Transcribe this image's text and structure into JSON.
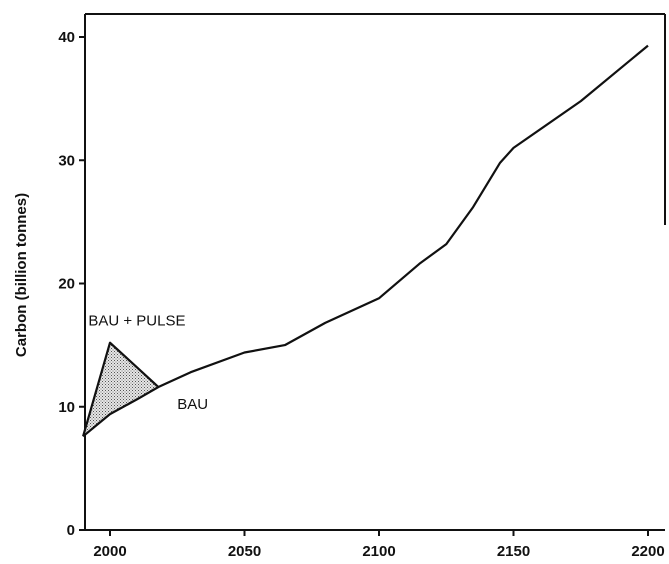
{
  "chart_data": {
    "type": "line",
    "title": "",
    "xlabel": "",
    "ylabel": "Carbon (billion tonnes)",
    "xlim": [
      1990,
      2205
    ],
    "ylim": [
      0,
      42
    ],
    "xticks": [
      2000,
      2050,
      2100,
      2150,
      2200
    ],
    "yticks": [
      0,
      10,
      20,
      30,
      40
    ],
    "grid": false,
    "series": [
      {
        "name": "BAU",
        "x": [
          1990,
          2000,
          2010,
          2018,
          2030,
          2050,
          2065,
          2080,
          2100,
          2115,
          2125,
          2135,
          2145,
          2150,
          2175,
          2200
        ],
        "y": [
          7.6,
          9.4,
          10.6,
          11.6,
          12.8,
          14.4,
          15.0,
          16.8,
          18.8,
          21.6,
          23.2,
          26.2,
          29.8,
          31.0,
          34.8,
          39.3
        ],
        "color": "#111111"
      },
      {
        "name": "BAU + PULSE",
        "x": [
          1990,
          2000,
          2018
        ],
        "y": [
          7.6,
          15.2,
          11.6
        ],
        "color": "#111111"
      }
    ],
    "shaded_region": {
      "between": [
        "BAU + PULSE",
        "BAU"
      ],
      "x_range": [
        1990,
        2018
      ],
      "fill": "stippled"
    },
    "annotations": [
      {
        "text": "BAU + PULSE",
        "x": 2010,
        "y": 16.6
      },
      {
        "text": "BAU",
        "x": 2025,
        "y": 9.8
      }
    ]
  }
}
